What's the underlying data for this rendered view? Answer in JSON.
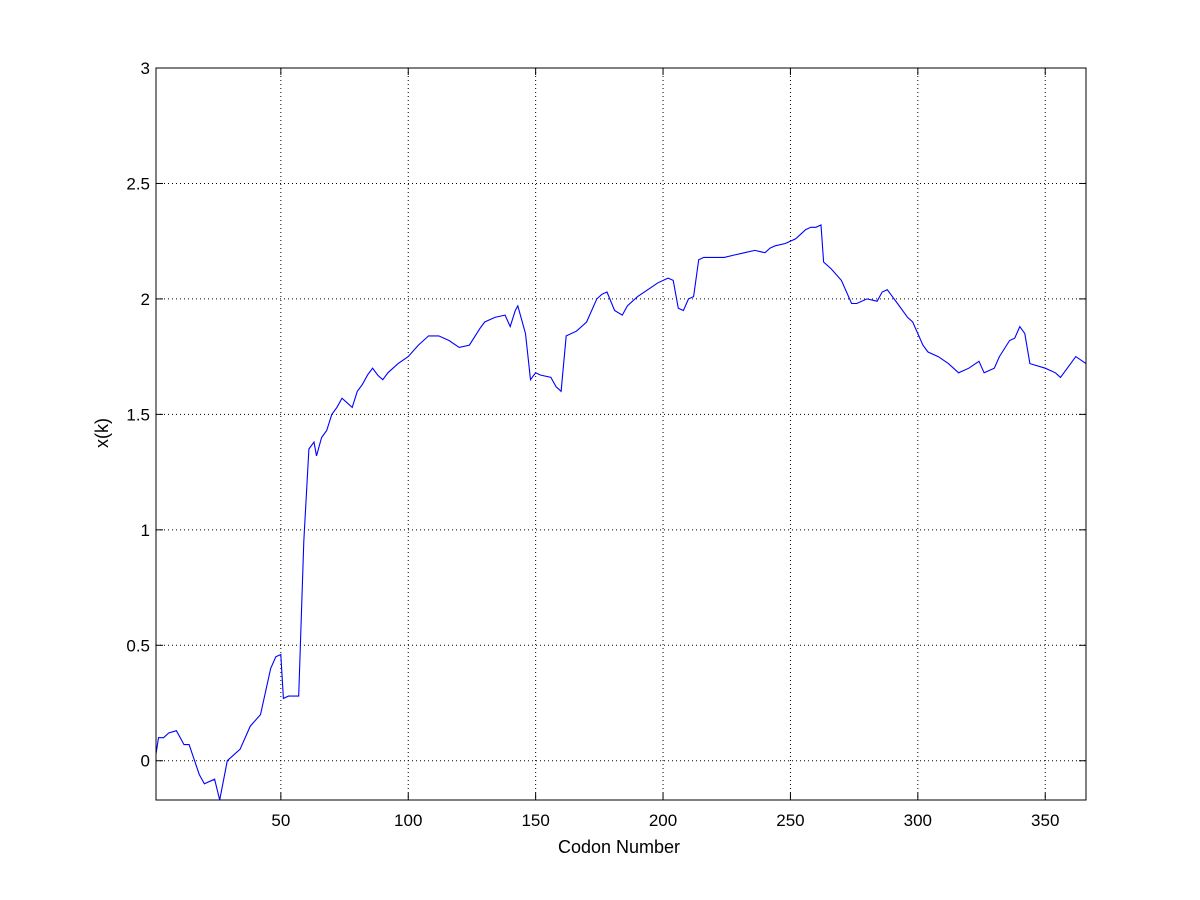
{
  "chart_data": {
    "type": "line",
    "title": "",
    "xlabel": "Codon Number",
    "ylabel": "x(k)",
    "xlim": [
      1,
      366
    ],
    "ylim": [
      -0.17,
      3
    ],
    "xticks": [
      50,
      100,
      150,
      200,
      250,
      300,
      350
    ],
    "xtick_labels": [
      "50",
      "100",
      "150",
      "200",
      "250",
      "300",
      "350"
    ],
    "yticks": [
      0,
      0.5,
      1,
      1.5,
      2,
      2.5,
      3
    ],
    "ytick_labels": [
      "0",
      "0.5",
      "1",
      "1.5",
      "2",
      "2.5",
      "3"
    ],
    "grid": true,
    "grid_style": "dotted",
    "legend": "none",
    "series": [
      {
        "color": "#0000ff",
        "x": [
          1,
          2,
          4,
          6,
          9,
          12,
          14,
          18,
          20,
          24,
          26,
          29,
          34,
          38,
          42,
          46,
          48,
          50,
          51,
          53,
          57,
          59,
          61,
          63,
          64,
          66,
          68,
          70,
          72,
          74,
          76,
          78,
          80,
          82,
          84,
          86,
          88,
          90,
          92,
          94,
          96,
          100,
          104,
          108,
          112,
          116,
          120,
          124,
          128,
          130,
          134,
          138,
          140,
          142,
          143,
          146,
          148,
          150,
          152,
          156,
          158,
          160,
          162,
          166,
          170,
          174,
          176,
          178,
          181,
          184,
          186,
          190,
          194,
          198,
          202,
          204,
          206,
          208,
          210,
          212,
          214,
          216,
          220,
          224,
          228,
          232,
          236,
          240,
          242,
          244,
          248,
          252,
          254,
          256,
          258,
          260,
          262,
          263,
          266,
          270,
          274,
          276,
          280,
          284,
          286,
          288,
          292,
          296,
          298,
          302,
          304,
          308,
          312,
          316,
          320,
          324,
          326,
          330,
          332,
          336,
          338,
          340,
          342,
          344,
          350,
          354,
          356,
          360,
          362,
          366
        ],
        "y": [
          0.03,
          0.1,
          0.1,
          0.12,
          0.13,
          0.07,
          0.07,
          -0.06,
          -0.1,
          -0.08,
          -0.17,
          0.0,
          0.05,
          0.15,
          0.2,
          0.4,
          0.45,
          0.46,
          0.27,
          0.28,
          0.28,
          0.95,
          1.35,
          1.38,
          1.32,
          1.4,
          1.43,
          1.5,
          1.53,
          1.57,
          1.55,
          1.53,
          1.6,
          1.63,
          1.67,
          1.7,
          1.67,
          1.65,
          1.68,
          1.7,
          1.72,
          1.75,
          1.8,
          1.84,
          1.84,
          1.82,
          1.79,
          1.8,
          1.87,
          1.9,
          1.92,
          1.93,
          1.88,
          1.95,
          1.97,
          1.85,
          1.65,
          1.68,
          1.67,
          1.66,
          1.62,
          1.6,
          1.84,
          1.86,
          1.9,
          2.0,
          2.02,
          2.03,
          1.95,
          1.93,
          1.97,
          2.01,
          2.04,
          2.07,
          2.09,
          2.08,
          1.96,
          1.95,
          2.0,
          2.01,
          2.17,
          2.18,
          2.18,
          2.18,
          2.19,
          2.2,
          2.21,
          2.2,
          2.22,
          2.23,
          2.24,
          2.26,
          2.28,
          2.3,
          2.31,
          2.31,
          2.32,
          2.16,
          2.13,
          2.08,
          1.98,
          1.98,
          2.0,
          1.99,
          2.03,
          2.04,
          1.98,
          1.92,
          1.9,
          1.8,
          1.77,
          1.75,
          1.72,
          1.68,
          1.7,
          1.73,
          1.68,
          1.7,
          1.75,
          1.82,
          1.83,
          1.88,
          1.85,
          1.72,
          1.7,
          1.68,
          1.66,
          1.72,
          1.75,
          1.72
        ]
      }
    ]
  }
}
